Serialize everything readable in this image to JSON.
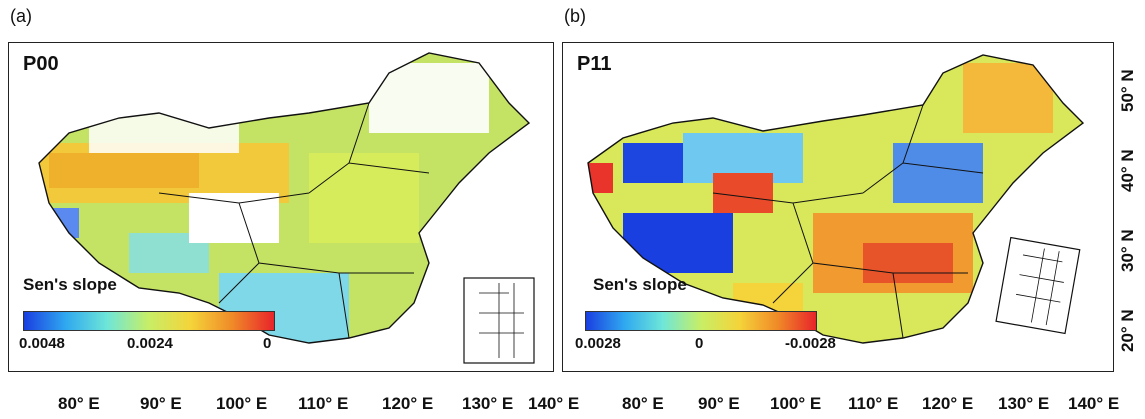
{
  "panels": [
    {
      "label": "(a)",
      "title": "P00",
      "colorbar": {
        "title": "Sen's slope",
        "ticks": [
          "0.0048",
          "0.0024",
          "0"
        ],
        "colors": [
          "#1a3fe0",
          "#2fa8f0",
          "#6ee6d8",
          "#c8ee66",
          "#f4d43a",
          "#f08a28",
          "#e8242a"
        ]
      }
    },
    {
      "label": "(b)",
      "title": "P11",
      "colorbar": {
        "title": "Sen's slope",
        "ticks": [
          "0.0028",
          "0",
          "-0.0028"
        ],
        "colors": [
          "#1a3fe0",
          "#2fa8f0",
          "#6ee6d8",
          "#c8ee66",
          "#f4d43a",
          "#f08a28",
          "#e8242a"
        ]
      }
    }
  ],
  "x_axis_ticks": [
    "80° E",
    "90° E",
    "100° E",
    "110° E",
    "120° E",
    "130° E",
    "140° E",
    "80° E",
    "90° E",
    "100° E",
    "110° E",
    "120° E",
    "130° E",
    "140° E"
  ],
  "y_axis_ticks": [
    "50° N",
    "40° N",
    "30° N",
    "20° N"
  ]
}
